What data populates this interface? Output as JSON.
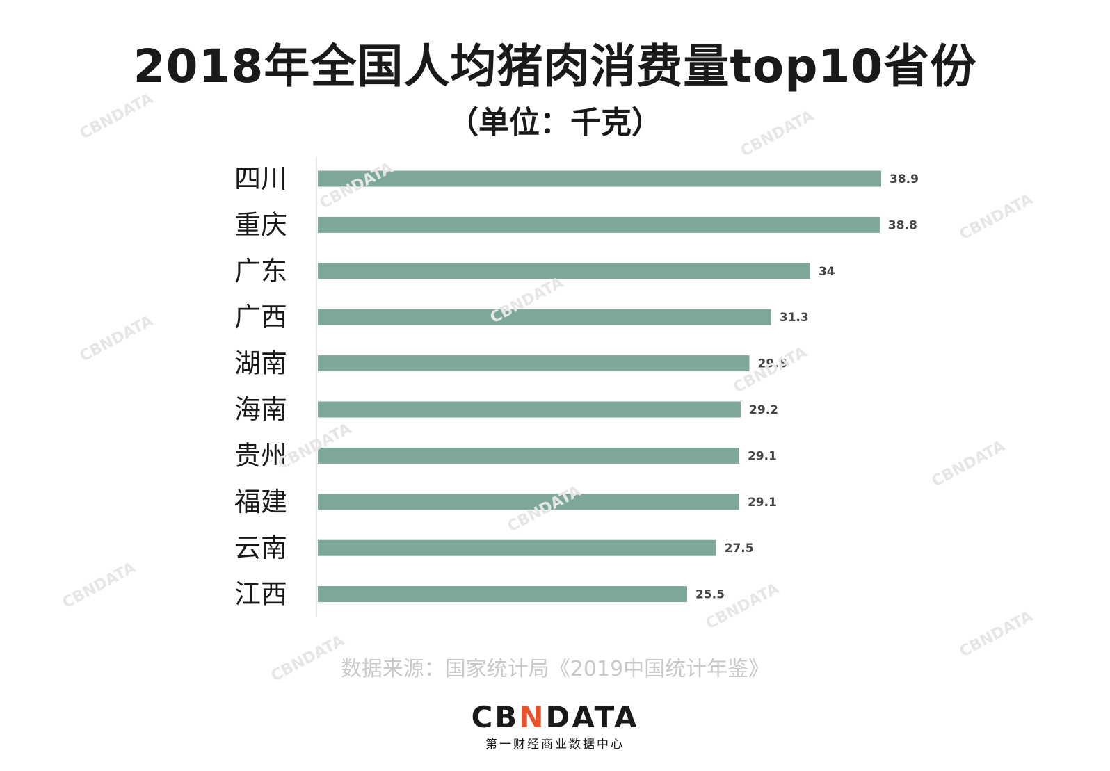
{
  "title": "2018年全国人均猪肉消费量top10省份",
  "subtitle": "（单位：千克）",
  "chart_data": {
    "type": "bar",
    "orientation": "horizontal",
    "categories": [
      "四川",
      "重庆",
      "广东",
      "广西",
      "湖南",
      "海南",
      "贵州",
      "福建",
      "云南",
      "江西"
    ],
    "values": [
      38.9,
      38.8,
      34,
      31.3,
      29.8,
      29.2,
      29.1,
      29.1,
      27.5,
      25.5
    ],
    "value_labels": [
      "38.9",
      "38.8",
      "34",
      "31.3",
      "29.8",
      "29.2",
      "29.1",
      "29.1",
      "27.5",
      "25.5"
    ],
    "unit": "千克",
    "xlim": [
      0,
      38.9
    ],
    "bar_color": "#7da79a",
    "grid": false
  },
  "source": "数据来源：国家统计局《2019中国统计年鉴》",
  "logo": {
    "word_pre": "CB",
    "word_accent": "N",
    "word_post": "DATA",
    "tagline": "第一财经商业数据中心",
    "accent_color": "#e8532b"
  },
  "watermark": "CBNDATA"
}
